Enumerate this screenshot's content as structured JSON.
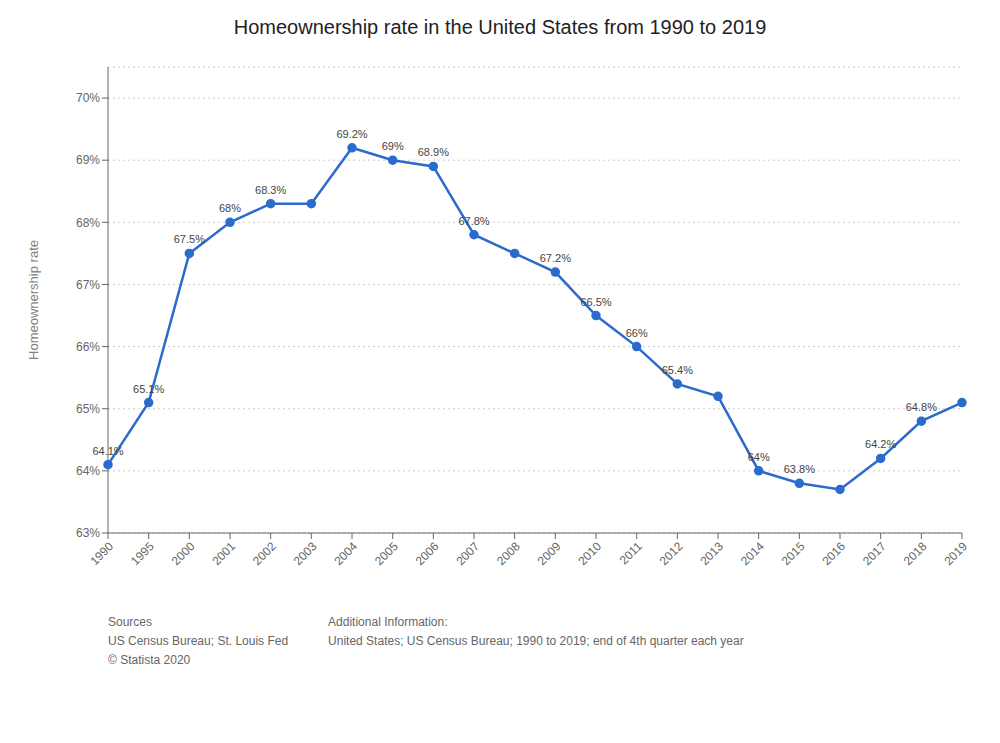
{
  "chart_data": {
    "type": "line",
    "title": "Homeownership rate in the United States from 1990 to 2019",
    "y_label": "Homeownership rate",
    "categories": [
      "1990",
      "1995",
      "2000",
      "2001",
      "2002",
      "2003",
      "2004",
      "2005",
      "2006",
      "2007",
      "2008",
      "2009",
      "2010",
      "2011",
      "2012",
      "2013",
      "2014",
      "2015",
      "2016",
      "2017",
      "2018",
      "2019"
    ],
    "values": [
      64.1,
      65.1,
      67.5,
      68.0,
      68.3,
      68.3,
      69.2,
      69.0,
      68.9,
      67.8,
      67.5,
      67.2,
      66.5,
      66.0,
      65.4,
      65.2,
      64.0,
      63.8,
      63.7,
      64.2,
      64.8,
      65.1
    ],
    "value_labels": [
      "64.1%",
      "65.1%",
      "67.5%",
      "68%",
      "68.3%",
      null,
      "69.2%",
      "69%",
      "68.9%",
      "67.8%",
      null,
      "67.2%",
      "66.5%",
      "66%",
      "65.4%",
      null,
      "64%",
      "63.8%",
      null,
      "64.2%",
      "64.8%",
      null
    ],
    "color": "#2b6bcc",
    "marker": "circle",
    "ylim": [
      63.0,
      70.5
    ],
    "yticks": [
      {
        "value": 63,
        "label": "63%"
      },
      {
        "value": 64,
        "label": "64%"
      },
      {
        "value": 65,
        "label": "65%"
      },
      {
        "value": 66,
        "label": "66%"
      },
      {
        "value": 67,
        "label": "67%"
      },
      {
        "value": 68,
        "label": "68%"
      },
      {
        "value": 69,
        "label": "69%"
      },
      {
        "value": 70,
        "label": "70%"
      }
    ],
    "grid": true,
    "annotations": [
      "Sources\nUS Census Bureau; St. Louis Fed\n© Statista 2020",
      "Additional Information:\nUnited States; US Census Bureau; 1990 to 2019; end of 4th quarter each year"
    ]
  }
}
